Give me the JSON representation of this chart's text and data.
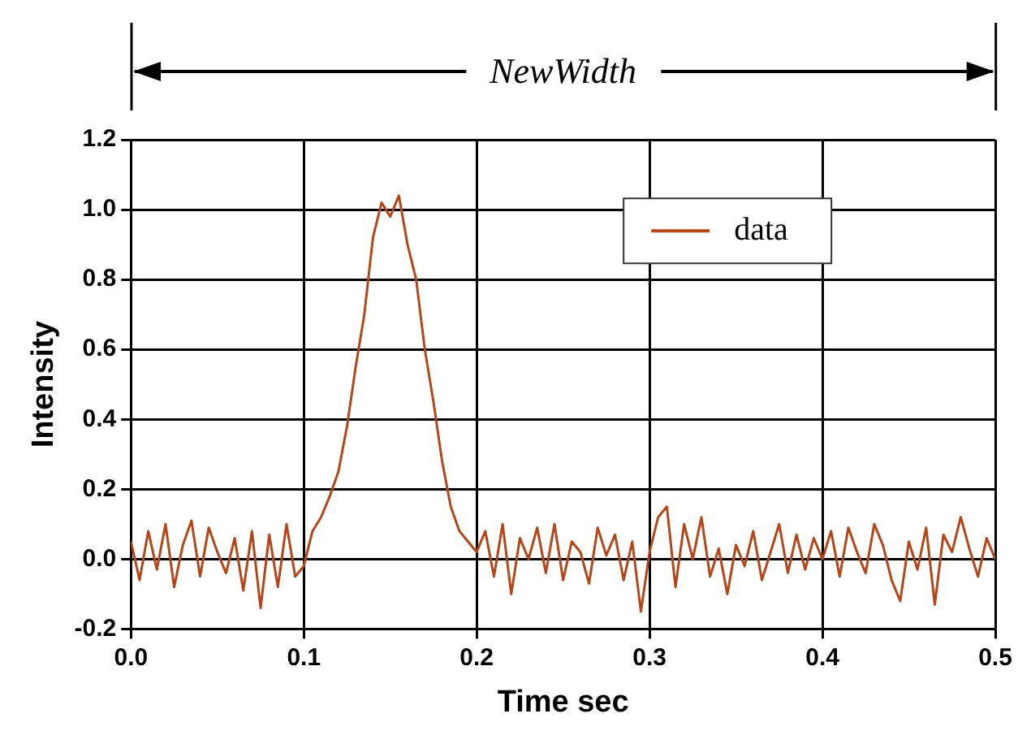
{
  "chart_data": {
    "type": "line",
    "xlabel": "Time sec",
    "ylabel": "Intensity",
    "annotations": [
      "NewWidth"
    ],
    "x": [
      0,
      0.005,
      0.01,
      0.015,
      0.02,
      0.025,
      0.03,
      0.035,
      0.04,
      0.045,
      0.05,
      0.055,
      0.06,
      0.065,
      0.07,
      0.075,
      0.08,
      0.085,
      0.09,
      0.095,
      0.1,
      0.105,
      0.11,
      0.115,
      0.12,
      0.125,
      0.13,
      0.135,
      0.14,
      0.145,
      0.15,
      0.155,
      0.16,
      0.165,
      0.17,
      0.175,
      0.18,
      0.185,
      0.19,
      0.195,
      0.2,
      0.205,
      0.21,
      0.215,
      0.22,
      0.225,
      0.23,
      0.235,
      0.24,
      0.245,
      0.25,
      0.255,
      0.26,
      0.265,
      0.27,
      0.275,
      0.28,
      0.285,
      0.29,
      0.295,
      0.3,
      0.305,
      0.31,
      0.315,
      0.32,
      0.325,
      0.33,
      0.335,
      0.34,
      0.345,
      0.35,
      0.355,
      0.36,
      0.365,
      0.37,
      0.375,
      0.38,
      0.385,
      0.39,
      0.395,
      0.4,
      0.405,
      0.41,
      0.415,
      0.42,
      0.425,
      0.43,
      0.435,
      0.44,
      0.445,
      0.45,
      0.455,
      0.46,
      0.465,
      0.47,
      0.475,
      0.48,
      0.485,
      0.49,
      0.495,
      0.5
    ],
    "series": [
      {
        "name": "data",
        "color": "#b5461a",
        "values": [
          0.05,
          -0.06,
          0.08,
          -0.03,
          0.1,
          -0.08,
          0.04,
          0.11,
          -0.05,
          0.09,
          0.02,
          -0.04,
          0.06,
          -0.09,
          0.08,
          -0.14,
          0.07,
          -0.08,
          0.1,
          -0.05,
          -0.02,
          0.08,
          0.12,
          0.18,
          0.25,
          0.38,
          0.55,
          0.7,
          0.92,
          1.02,
          0.98,
          1.04,
          0.9,
          0.8,
          0.6,
          0.45,
          0.28,
          0.15,
          0.08,
          0.05,
          0.02,
          0.08,
          -0.05,
          0.1,
          -0.1,
          0.06,
          0,
          0.09,
          -0.04,
          0.1,
          -0.06,
          0.05,
          0.02,
          -0.07,
          0.09,
          0.01,
          0.07,
          -0.06,
          0.05,
          -0.15,
          0.02,
          0.12,
          0.15,
          -0.08,
          0.1,
          0,
          0.12,
          -0.05,
          0.03,
          -0.1,
          0.04,
          -0.02,
          0.08,
          -0.06,
          0.02,
          0.1,
          -0.04,
          0.07,
          -0.03,
          0.06,
          0,
          0.08,
          -0.05,
          0.09,
          0.02,
          -0.04,
          0.1,
          0.04,
          -0.06,
          -0.12,
          0.05,
          -0.03,
          0.09,
          -0.13,
          0.07,
          0.02,
          0.12,
          0.03,
          -0.05,
          0.06,
          0
        ]
      }
    ],
    "xlim": [
      0,
      0.5
    ],
    "xticks": [
      {
        "value": 0,
        "label": "0.0"
      },
      0.1,
      0.2,
      0.3,
      0.4,
      {
        "value": 0.5,
        "label": "0.5"
      }
    ],
    "ylim": [
      -0.2,
      1.2
    ],
    "yticks": [
      -0.2,
      {
        "value": 0,
        "label": "0.0"
      },
      0.2,
      0.4,
      0.6,
      0.8,
      {
        "value": 1,
        "label": "1.0"
      },
      1.2
    ],
    "grid": true,
    "legend": "top right",
    "marker": "none",
    "line_style": "solid"
  }
}
